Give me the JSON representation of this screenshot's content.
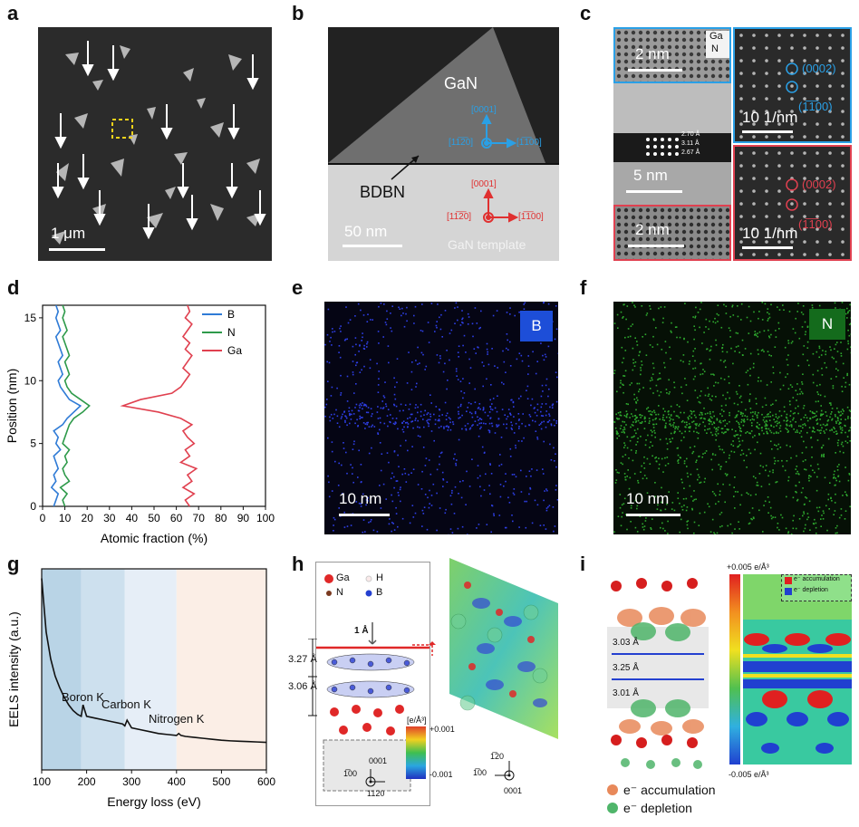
{
  "panels": {
    "a": {
      "label": "a",
      "scale": "1 μm"
    },
    "b": {
      "label": "b",
      "scale": "50 nm",
      "gan": "GaN",
      "bdbn": "BDBN",
      "template": "GaN template",
      "dir_top": "[0001]",
      "dir_left": "[11̅2̅0]",
      "dir_right": "[1̅1̅00]",
      "dir_top2": "[0001]",
      "dir_left2": "[11̅2̅0]",
      "dir_right2": "[1̅1̅00]"
    },
    "c": {
      "label": "c",
      "scale_tl": "2 nm",
      "scale_mid": "5 nm",
      "scale_bl": "2 nm",
      "scale_tr": "10 1/nm",
      "scale_br": "10 1/nm",
      "ga": "Ga",
      "n": "N",
      "d1": "2.70 Å",
      "d2": "3.11 Å",
      "d3": "2.67 Å",
      "fft_tr_1": "(0002)",
      "fft_tr_2": "(1̅1̅00)",
      "fft_br_1": "(0002)",
      "fft_br_2": "(1̅1̅00)"
    },
    "d": {
      "label": "d"
    },
    "e": {
      "label": "e",
      "tag": "B",
      "scale": "10 nm"
    },
    "f": {
      "label": "f",
      "tag": "N",
      "scale": "10 nm"
    },
    "g": {
      "label": "g",
      "boron": "Boron K",
      "carbon": "Carbon K",
      "nitrogen": "Nitrogen K"
    },
    "h": {
      "label": "h",
      "ga": "Ga",
      "h": "H",
      "n": "N",
      "b": "B",
      "d1": "1 Å",
      "d2": "3.27 Å",
      "d3": "3.06 Å",
      "cbar_title": "[e/Å³]",
      "cbar_max": "+0.001",
      "cbar_min": "-0.001",
      "ax1": "0001",
      "ax2": "1̅00",
      "ax3": "1120",
      "ax4": "1̅20",
      "ax5": "1̅00",
      "ax6": "0001"
    },
    "i": {
      "label": "i",
      "d1": "3.03 Å",
      "d2": "3.25 Å",
      "d3": "3.01 Å",
      "cbar_top": "+0.005 e/Å³",
      "cbar_bot": "-0.005 e/Å³",
      "leg_acc": "e⁻ accumulation",
      "leg_dep": "e⁻ depletion",
      "leg2_acc": "e⁻ accumulation",
      "leg2_dep": "e⁻ depletion"
    }
  },
  "chart_data": [
    {
      "type": "line",
      "panel": "d",
      "xlabel": "Atomic fraction (%)",
      "ylabel": "Position (nm)",
      "xlim": [
        0,
        100
      ],
      "ylim": [
        0,
        16
      ],
      "xticks": [
        0,
        10,
        20,
        30,
        40,
        50,
        60,
        70,
        80,
        90,
        100
      ],
      "yticks": [
        0,
        5,
        10,
        15
      ],
      "legend": "top-right",
      "series": [
        {
          "name": "B",
          "color": "#2f7bd6",
          "y": [
            0,
            0.5,
            1,
            1.5,
            2,
            2.5,
            3,
            3.5,
            4,
            4.5,
            5,
            5.5,
            6,
            6.5,
            7,
            7.5,
            8,
            8.5,
            9,
            9.5,
            10,
            10.5,
            11,
            11.5,
            12,
            12.5,
            13,
            13.5,
            14,
            14.5,
            15,
            15.5,
            16
          ],
          "x": [
            5,
            6,
            7,
            4,
            6,
            5,
            7,
            6,
            5,
            8,
            6,
            7,
            5,
            9,
            11,
            14,
            17,
            12,
            10,
            8,
            7,
            9,
            8,
            7,
            9,
            8,
            7,
            6,
            8,
            7,
            6,
            7,
            6
          ]
        },
        {
          "name": "N",
          "color": "#2e9a4a",
          "y": [
            0,
            0.5,
            1,
            1.5,
            2,
            2.5,
            3,
            3.5,
            4,
            4.5,
            5,
            5.5,
            6,
            6.5,
            7,
            7.5,
            8,
            8.5,
            9,
            9.5,
            10,
            10.5,
            11,
            11.5,
            12,
            12.5,
            13,
            13.5,
            14,
            14.5,
            15,
            15.5,
            16
          ],
          "x": [
            10,
            9,
            11,
            8,
            12,
            10,
            9,
            11,
            10,
            12,
            9,
            10,
            11,
            12,
            14,
            18,
            21,
            17,
            13,
            11,
            10,
            12,
            11,
            10,
            12,
            11,
            10,
            9,
            11,
            10,
            9,
            10,
            9
          ]
        },
        {
          "name": "Ga",
          "color": "#e0404f",
          "y": [
            0,
            0.5,
            1,
            1.5,
            2,
            2.5,
            3,
            3.5,
            4,
            4.5,
            5,
            5.5,
            6,
            6.5,
            7,
            7.5,
            8,
            8.5,
            9,
            9.5,
            10,
            10.5,
            11,
            11.5,
            12,
            12.5,
            13,
            13.5,
            14,
            14.5,
            15,
            15.5,
            16
          ],
          "x": [
            66,
            64,
            68,
            63,
            67,
            65,
            69,
            62,
            66,
            64,
            68,
            65,
            63,
            67,
            62,
            52,
            36,
            44,
            58,
            62,
            64,
            66,
            63,
            65,
            67,
            64,
            66,
            63,
            65,
            67,
            64,
            66,
            65
          ]
        }
      ]
    },
    {
      "type": "line",
      "panel": "g",
      "xlabel": "Energy loss (eV)",
      "ylabel": "EELS intensity (a.u.)",
      "xlim": [
        100,
        600
      ],
      "xticks": [
        100,
        200,
        300,
        400,
        500,
        600
      ],
      "x": [
        100,
        110,
        120,
        130,
        140,
        150,
        160,
        170,
        180,
        188,
        192,
        196,
        200,
        220,
        240,
        260,
        280,
        285,
        290,
        300,
        320,
        340,
        360,
        380,
        400,
        405,
        410,
        420,
        440,
        460,
        480,
        500,
        520,
        540,
        560,
        580,
        600
      ],
      "y": [
        100,
        72,
        58,
        49,
        43,
        38,
        34,
        31,
        29,
        28,
        34,
        31,
        28,
        27,
        26,
        25,
        24,
        23,
        26,
        22,
        21,
        20,
        19,
        18.5,
        18,
        19,
        18,
        17.5,
        17,
        16.5,
        16,
        15.5,
        15.2,
        15,
        14.8,
        14.6,
        14.4
      ],
      "shaded_regions": [
        [
          100,
          188
        ],
        [
          188,
          285
        ],
        [
          285,
          400
        ],
        [
          400,
          600
        ]
      ],
      "region_colors": [
        "#b9d4e6",
        "#cde0ee",
        "#e6eef7",
        "#fbeee6"
      ]
    }
  ]
}
